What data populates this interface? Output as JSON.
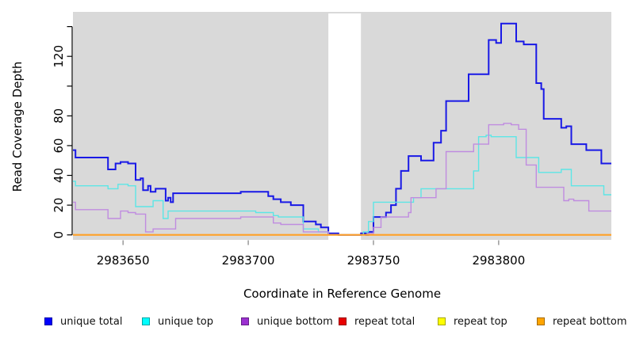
{
  "panel": {
    "bg_color": "#d9d9d9",
    "gap_fill": "#ffffff",
    "axis_color": "#000000",
    "x_tick_color": "#808080"
  },
  "axes": {
    "x": {
      "title": "Coordinate in Reference Genome",
      "range": [
        2983630,
        2983845
      ],
      "ticks": [
        {
          "v": 2983650,
          "label": "2983650"
        },
        {
          "v": 2983700,
          "label": "2983700"
        },
        {
          "v": 2983750,
          "label": "2983750"
        },
        {
          "v": 2983800,
          "label": "2983800"
        }
      ]
    },
    "y": {
      "title": "Read Coverage Depth",
      "range": [
        0,
        150
      ],
      "ticks": [
        {
          "v": 0,
          "label": "0"
        },
        {
          "v": 20,
          "label": "20"
        },
        {
          "v": 40,
          "label": "40"
        },
        {
          "v": 60,
          "label": "60"
        },
        {
          "v": 80,
          "label": "80"
        },
        {
          "v": 100,
          "label": ""
        },
        {
          "v": 120,
          "label": "120"
        },
        {
          "v": 140,
          "label": ""
        }
      ]
    }
  },
  "chart_data": {
    "type": "line",
    "subtype": "step-coverage",
    "title": "",
    "xlabel": "Coordinate in Reference Genome",
    "ylabel": "Read Coverage Depth",
    "x_range": [
      2983630,
      2983845
    ],
    "y_range": [
      0,
      150
    ],
    "grid": false,
    "legend_position": "bottom",
    "no_data_gap_region": [
      2983732,
      2983745
    ],
    "series": [
      {
        "name": "unique total",
        "color": "#1919e6",
        "legend_color": "#0000ff",
        "width": 2,
        "points": [
          [
            2983630,
            57
          ],
          [
            2983631,
            52
          ],
          [
            2983644,
            44
          ],
          [
            2983647,
            48
          ],
          [
            2983649,
            49
          ],
          [
            2983652,
            48
          ],
          [
            2983655,
            37
          ],
          [
            2983657,
            38
          ],
          [
            2983658,
            30
          ],
          [
            2983660,
            33
          ],
          [
            2983661,
            29
          ],
          [
            2983663,
            31
          ],
          [
            2983667,
            23
          ],
          [
            2983668,
            25
          ],
          [
            2983669,
            22
          ],
          [
            2983670,
            28
          ],
          [
            2983697,
            29
          ],
          [
            2983708,
            26
          ],
          [
            2983710,
            24
          ],
          [
            2983713,
            22
          ],
          [
            2983717,
            20
          ],
          [
            2983722,
            9
          ],
          [
            2983727,
            7
          ],
          [
            2983729,
            5
          ],
          [
            2983732,
            1
          ],
          [
            2983736,
            0
          ],
          [
            2983745,
            1
          ],
          [
            2983747,
            0
          ],
          [
            2983748,
            2
          ],
          [
            2983750,
            12
          ],
          [
            2983755,
            15
          ],
          [
            2983757,
            20
          ],
          [
            2983759,
            31
          ],
          [
            2983761,
            43
          ],
          [
            2983764,
            53
          ],
          [
            2983769,
            50
          ],
          [
            2983774,
            62
          ],
          [
            2983777,
            70
          ],
          [
            2983779,
            90
          ],
          [
            2983788,
            108
          ],
          [
            2983796,
            131
          ],
          [
            2983799,
            129
          ],
          [
            2983801,
            142
          ],
          [
            2983807,
            130
          ],
          [
            2983810,
            128
          ],
          [
            2983815,
            102
          ],
          [
            2983817,
            98
          ],
          [
            2983818,
            78
          ],
          [
            2983825,
            72
          ],
          [
            2983827,
            73
          ],
          [
            2983829,
            61
          ],
          [
            2983835,
            57
          ],
          [
            2983841,
            48
          ]
        ]
      },
      {
        "name": "unique top",
        "color": "#5ce6e6",
        "legend_color": "#00ffff",
        "width": 1.4,
        "points": [
          [
            2983630,
            36
          ],
          [
            2983631,
            33
          ],
          [
            2983644,
            31
          ],
          [
            2983648,
            34
          ],
          [
            2983652,
            33
          ],
          [
            2983655,
            19
          ],
          [
            2983662,
            23
          ],
          [
            2983666,
            11
          ],
          [
            2983668,
            16
          ],
          [
            2983703,
            15
          ],
          [
            2983710,
            13
          ],
          [
            2983712,
            12
          ],
          [
            2983722,
            4
          ],
          [
            2983728,
            2
          ],
          [
            2983732,
            0
          ],
          [
            2983746,
            2
          ],
          [
            2983748,
            9
          ],
          [
            2983750,
            22
          ],
          [
            2983766,
            25
          ],
          [
            2983769,
            31
          ],
          [
            2983790,
            43
          ],
          [
            2983792,
            66
          ],
          [
            2983795,
            67
          ],
          [
            2983797,
            66
          ],
          [
            2983807,
            52
          ],
          [
            2983816,
            42
          ],
          [
            2983825,
            44
          ],
          [
            2983829,
            33
          ],
          [
            2983842,
            27
          ]
        ]
      },
      {
        "name": "unique bottom",
        "color": "#c08ce0",
        "legend_color": "#9b30d0",
        "width": 1.4,
        "points": [
          [
            2983630,
            22
          ],
          [
            2983631,
            17
          ],
          [
            2983644,
            11
          ],
          [
            2983649,
            16
          ],
          [
            2983652,
            15
          ],
          [
            2983655,
            14
          ],
          [
            2983659,
            2
          ],
          [
            2983662,
            4
          ],
          [
            2983671,
            11
          ],
          [
            2983697,
            12
          ],
          [
            2983710,
            8
          ],
          [
            2983713,
            7
          ],
          [
            2983722,
            2
          ],
          [
            2983732,
            0
          ],
          [
            2983748,
            1
          ],
          [
            2983750,
            5
          ],
          [
            2983753,
            12
          ],
          [
            2983764,
            15
          ],
          [
            2983765,
            25
          ],
          [
            2983775,
            31
          ],
          [
            2983779,
            56
          ],
          [
            2983790,
            61
          ],
          [
            2983796,
            74
          ],
          [
            2983802,
            75
          ],
          [
            2983805,
            74
          ],
          [
            2983808,
            71
          ],
          [
            2983811,
            47
          ],
          [
            2983815,
            32
          ],
          [
            2983826,
            23
          ],
          [
            2983828,
            24
          ],
          [
            2983830,
            23
          ],
          [
            2983836,
            16
          ]
        ]
      },
      {
        "name": "repeat total",
        "color": "#e00000",
        "legend_color": "#e80000",
        "width": 1.4,
        "points": [
          [
            2983630,
            0
          ]
        ]
      },
      {
        "name": "repeat top",
        "color": "#ffff00",
        "legend_color": "#ffff00",
        "width": 1.4,
        "points": [
          [
            2983630,
            0
          ]
        ]
      },
      {
        "name": "repeat bottom",
        "color": "#ffa126",
        "legend_color": "#ffa500",
        "width": 2.2,
        "points": [
          [
            2983630,
            0
          ]
        ]
      }
    ]
  },
  "legend": {
    "items": [
      {
        "label": "unique total",
        "color": "#0000ff"
      },
      {
        "label": "unique top",
        "color": "#00ffff"
      },
      {
        "label": "unique bottom",
        "color": "#9b30d0"
      },
      {
        "label": "repeat total",
        "color": "#e80000"
      },
      {
        "label": "repeat top",
        "color": "#ffff00"
      },
      {
        "label": "repeat bottom",
        "color": "#ffa500"
      }
    ]
  }
}
